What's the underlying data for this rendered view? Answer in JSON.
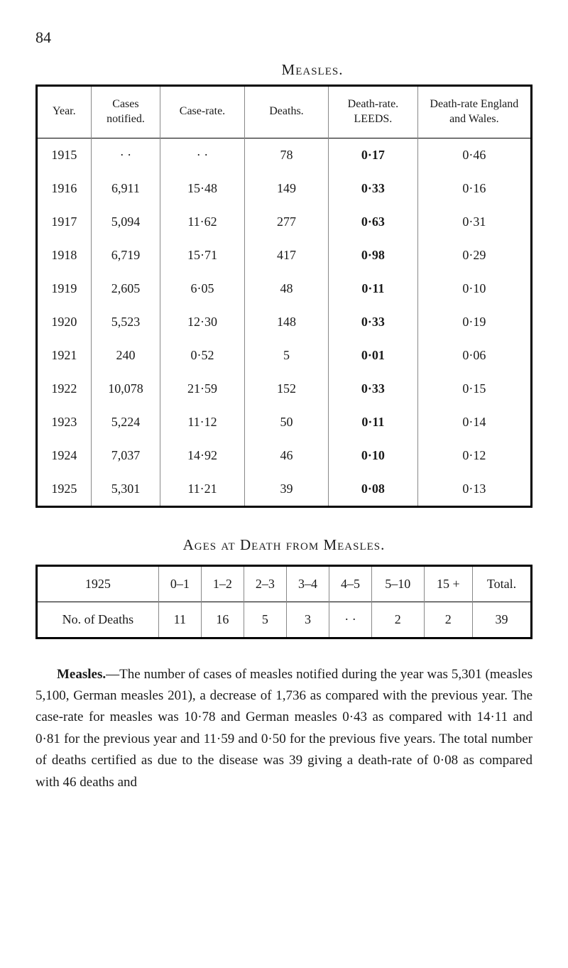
{
  "page_number": "84",
  "measles_table": {
    "title": "Measles.",
    "columns": [
      "Year.",
      "Cases notified.",
      "Case-rate.",
      "Deaths.",
      "Death-rate. LEEDS.",
      "Death-rate England and Wales."
    ],
    "rows": [
      {
        "year": "1915",
        "cases": "· ·",
        "caserate": "· ·",
        "deaths": "78",
        "drleeds": "0·17",
        "drengland": "0·46"
      },
      {
        "year": "1916",
        "cases": "6,911",
        "caserate": "15·48",
        "deaths": "149",
        "drleeds": "0·33",
        "drengland": "0·16"
      },
      {
        "year": "1917",
        "cases": "5,094",
        "caserate": "11·62",
        "deaths": "277",
        "drleeds": "0·63",
        "drengland": "0·31"
      },
      {
        "year": "1918",
        "cases": "6,719",
        "caserate": "15·71",
        "deaths": "417",
        "drleeds": "0·98",
        "drengland": "0·29"
      },
      {
        "year": "1919",
        "cases": "2,605",
        "caserate": "6·05",
        "deaths": "48",
        "drleeds": "0·11",
        "drengland": "0·10"
      },
      {
        "year": "1920",
        "cases": "5,523",
        "caserate": "12·30",
        "deaths": "148",
        "drleeds": "0·33",
        "drengland": "0·19"
      },
      {
        "year": "1921",
        "cases": "240",
        "caserate": "0·52",
        "deaths": "5",
        "drleeds": "0·01",
        "drengland": "0·06"
      },
      {
        "year": "1922",
        "cases": "10,078",
        "caserate": "21·59",
        "deaths": "152",
        "drleeds": "0·33",
        "drengland": "0·15"
      },
      {
        "year": "1923",
        "cases": "5,224",
        "caserate": "11·12",
        "deaths": "50",
        "drleeds": "0·11",
        "drengland": "0·14"
      },
      {
        "year": "1924",
        "cases": "7,037",
        "caserate": "14·92",
        "deaths": "46",
        "drleeds": "0·10",
        "drengland": "0·12"
      },
      {
        "year": "1925",
        "cases": "5,301",
        "caserate": "11·21",
        "deaths": "39",
        "drleeds": "0·08",
        "drengland": "0·13"
      }
    ]
  },
  "ages_table": {
    "title": "Ages at Death from Measles.",
    "header_row": {
      "year": "1925",
      "ranges": [
        "0–1",
        "1–2",
        "2–3",
        "3–4",
        "4–5",
        "5–10",
        "15 +",
        "Total."
      ]
    },
    "data_row": {
      "label": "No. of Deaths",
      "values": [
        "11",
        "16",
        "5",
        "3",
        "· ·",
        "2",
        "2",
        "39"
      ]
    }
  },
  "paragraph": {
    "lead": "Measles.",
    "text": "—The number of cases of measles notified during the year was 5,301 (measles 5,100, German measles 201), a decrease of 1,736 as compared with the previous year. The case-rate for measles was 10·78 and German measles 0·43 as compared with 14·11 and 0·81 for the previous year and 11·59 and 0·50 for the previous five years. The total number of deaths certified as due to the disease was 39 giving a death-rate of 0·08 as compared with 46 deaths and"
  },
  "colors": {
    "text": "#1a1a1a",
    "background": "#ffffff",
    "border_heavy": "#000000",
    "border_light": "#888888"
  }
}
